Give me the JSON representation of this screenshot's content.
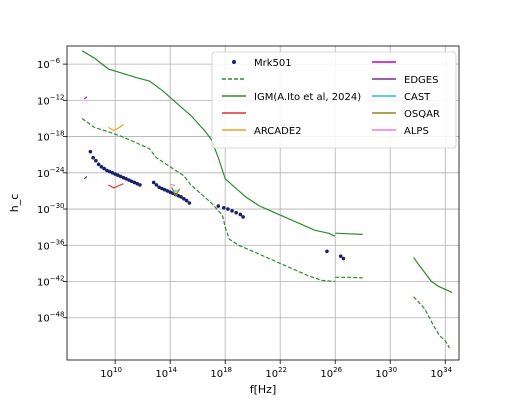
{
  "chart_data": {
    "type": "line",
    "title": "",
    "xlabel": "f[Hz]",
    "ylabel": "h_c",
    "xscale": "log",
    "yscale": "log",
    "xlim_exp": [
      6.5,
      35
    ],
    "ylim_exp": [
      -55,
      -3
    ],
    "grid": true,
    "legend_placement": "top-right",
    "x_ticks": [
      {
        "exp": 10,
        "base": "10",
        "sup": "10"
      },
      {
        "exp": 14,
        "base": "10",
        "sup": "14"
      },
      {
        "exp": 18,
        "base": "10",
        "sup": "18"
      },
      {
        "exp": 22,
        "base": "10",
        "sup": "22"
      },
      {
        "exp": 26,
        "base": "10",
        "sup": "26"
      },
      {
        "exp": 30,
        "base": "10",
        "sup": "30"
      },
      {
        "exp": 34,
        "base": "10",
        "sup": "34"
      }
    ],
    "y_ticks": [
      {
        "exp": -6,
        "base": "10",
        "sup": "−6"
      },
      {
        "exp": -12,
        "base": "10",
        "sup": "−12"
      },
      {
        "exp": -18,
        "base": "10",
        "sup": "−18"
      },
      {
        "exp": -24,
        "base": "10",
        "sup": "−24"
      },
      {
        "exp": -30,
        "base": "10",
        "sup": "−30"
      },
      {
        "exp": -36,
        "base": "10",
        "sup": "−36"
      },
      {
        "exp": -42,
        "base": "10",
        "sup": "−42"
      },
      {
        "exp": -48,
        "base": "10",
        "sup": "−48"
      }
    ],
    "series": [
      {
        "name": "Mrk501",
        "kind": "scatter",
        "color": "#1a1f6e",
        "points": [
          [
            8.2,
            -20.5
          ],
          [
            8.4,
            -21.5
          ],
          [
            8.6,
            -22.0
          ],
          [
            8.8,
            -22.6
          ],
          [
            9.0,
            -23.0
          ],
          [
            9.2,
            -23.3
          ],
          [
            9.4,
            -23.6
          ],
          [
            9.6,
            -23.8
          ],
          [
            9.8,
            -24.0
          ],
          [
            10.0,
            -24.2
          ],
          [
            10.2,
            -24.4
          ],
          [
            10.4,
            -24.6
          ],
          [
            10.6,
            -24.8
          ],
          [
            10.8,
            -25.0
          ],
          [
            11.0,
            -25.2
          ],
          [
            11.2,
            -25.4
          ],
          [
            11.4,
            -25.6
          ],
          [
            11.6,
            -25.8
          ],
          [
            11.8,
            -26.0
          ],
          [
            12.8,
            -25.6
          ],
          [
            13.0,
            -26.0
          ],
          [
            13.2,
            -26.4
          ],
          [
            13.4,
            -26.6
          ],
          [
            13.6,
            -26.8
          ],
          [
            13.8,
            -27.0
          ],
          [
            14.0,
            -27.2
          ],
          [
            14.2,
            -27.4
          ],
          [
            14.4,
            -27.6
          ],
          [
            14.6,
            -27.8
          ],
          [
            14.8,
            -28.0
          ],
          [
            15.0,
            -28.3
          ],
          [
            15.2,
            -28.6
          ],
          [
            15.4,
            -29.0
          ],
          [
            17.5,
            -29.5
          ],
          [
            17.9,
            -29.8
          ],
          [
            18.2,
            -30.0
          ],
          [
            18.5,
            -30.3
          ],
          [
            18.8,
            -30.6
          ],
          [
            19.1,
            -30.9
          ],
          [
            19.3,
            -31.3
          ],
          [
            25.4,
            -37.0
          ],
          [
            26.4,
            -37.8
          ],
          [
            26.6,
            -38.2
          ]
        ]
      },
      {
        "name": "",
        "kind": "line",
        "dash": "4,2",
        "color": "#2e8b2e",
        "segments": [
          [
            [
              7.6,
              -15.0
            ],
            [
              8.5,
              -16.5
            ],
            [
              9.5,
              -17.2
            ],
            [
              10.5,
              -18.0
            ],
            [
              11.5,
              -19.0
            ],
            [
              12.5,
              -20.0
            ],
            [
              13.0,
              -21.5
            ],
            [
              14.0,
              -23.0
            ],
            [
              15.0,
              -24.5
            ],
            [
              15.5,
              -26.0
            ],
            [
              16.0,
              -27.0
            ],
            [
              17.0,
              -29.0
            ],
            [
              17.8,
              -31.0
            ],
            [
              18.0,
              -33.0
            ],
            [
              18.3,
              -35.0
            ],
            [
              19.0,
              -36.0
            ],
            [
              20.0,
              -37.0
            ],
            [
              21.0,
              -38.0
            ],
            [
              22.0,
              -39.0
            ],
            [
              23.0,
              -40.0
            ],
            [
              24.0,
              -41.0
            ],
            [
              25.0,
              -41.8
            ],
            [
              26.0,
              -42.0
            ]
          ],
          [
            [
              26.0,
              -41.3
            ],
            [
              27.0,
              -41.3
            ],
            [
              28.0,
              -41.4
            ]
          ],
          [
            [
              31.7,
              -44.5
            ],
            [
              32.5,
              -46.5
            ],
            [
              33.2,
              -49.5
            ],
            [
              33.6,
              -51.0
            ],
            [
              34.0,
              -51.8
            ],
            [
              34.3,
              -53.0
            ]
          ]
        ]
      },
      {
        "name": "IGM(A.Ito et al, 2024)",
        "kind": "line",
        "dash": "",
        "color": "#2e8b2e",
        "segments": [
          [
            [
              7.6,
              -3.8
            ],
            [
              8.5,
              -5.0
            ],
            [
              9.5,
              -6.8
            ],
            [
              10.5,
              -7.5
            ],
            [
              11.5,
              -8.2
            ],
            [
              12.5,
              -8.8
            ],
            [
              13.5,
              -10.5
            ],
            [
              14.5,
              -12.5
            ],
            [
              15.5,
              -14.5
            ],
            [
              16.5,
              -17.0
            ],
            [
              17.0,
              -18.5
            ],
            [
              17.5,
              -21.5
            ],
            [
              18.0,
              -25.0
            ],
            [
              18.5,
              -26.0
            ],
            [
              19.0,
              -27.0
            ],
            [
              19.5,
              -28.0
            ],
            [
              20.5,
              -29.5
            ],
            [
              21.5,
              -30.5
            ],
            [
              22.5,
              -31.5
            ],
            [
              23.5,
              -32.5
            ],
            [
              24.5,
              -33.5
            ],
            [
              25.5,
              -34.0
            ],
            [
              26.0,
              -34.5
            ]
          ],
          [
            [
              26.0,
              -34.0
            ],
            [
              27.0,
              -34.1
            ],
            [
              28.0,
              -34.2
            ]
          ],
          [
            [
              31.7,
              -38.0
            ],
            [
              32.0,
              -39.0
            ],
            [
              32.5,
              -40.5
            ],
            [
              33.0,
              -42.0
            ],
            [
              33.5,
              -42.8
            ],
            [
              34.0,
              -43.3
            ],
            [
              34.5,
              -43.8
            ]
          ]
        ]
      },
      {
        "name": "",
        "kind": "line",
        "dash": "",
        "color": "#e03030",
        "segments": [
          [
            [
              9.5,
              -26.0
            ],
            [
              9.9,
              -26.5
            ],
            [
              10.3,
              -26.1
            ],
            [
              10.6,
              -25.8
            ]
          ]
        ]
      },
      {
        "name": "ARCADE2",
        "kind": "line",
        "dash": "",
        "color": "#f0a020",
        "segments": [
          [
            [
              9.5,
              -16.5
            ],
            [
              9.9,
              -17.0
            ],
            [
              10.3,
              -16.5
            ],
            [
              10.6,
              -16.0
            ]
          ]
        ]
      },
      {
        "name": "",
        "kind": "line",
        "dash": "",
        "color": "#c000c0",
        "segments": [
          [
            [
              7.75,
              -11.8
            ],
            [
              7.95,
              -11.4
            ]
          ]
        ]
      },
      {
        "name": "EDGES",
        "kind": "line",
        "dash": "",
        "color": "#7a2a8a",
        "segments": [
          [
            [
              7.75,
              -25.0
            ],
            [
              7.95,
              -24.6
            ]
          ]
        ]
      },
      {
        "name": "CAST",
        "kind": "line",
        "dash": "",
        "color": "#20c0e0",
        "segments": [
          [
            [
              14.25,
              -27.0
            ],
            [
              14.55,
              -27.0
            ]
          ]
        ]
      },
      {
        "name": "OSQAR",
        "kind": "line",
        "dash": "",
        "color": "#8a8a10",
        "segments": [
          [
            [
              14.1,
              -26.4
            ],
            [
              14.4,
              -27.8
            ],
            [
              14.7,
              -26.6
            ]
          ]
        ]
      },
      {
        "name": "ALPS",
        "kind": "line",
        "dash": "",
        "color": "#f080d0",
        "segments": [
          [
            [
              14.0,
              -25.9
            ],
            [
              14.35,
              -26.1
            ]
          ]
        ]
      }
    ]
  }
}
